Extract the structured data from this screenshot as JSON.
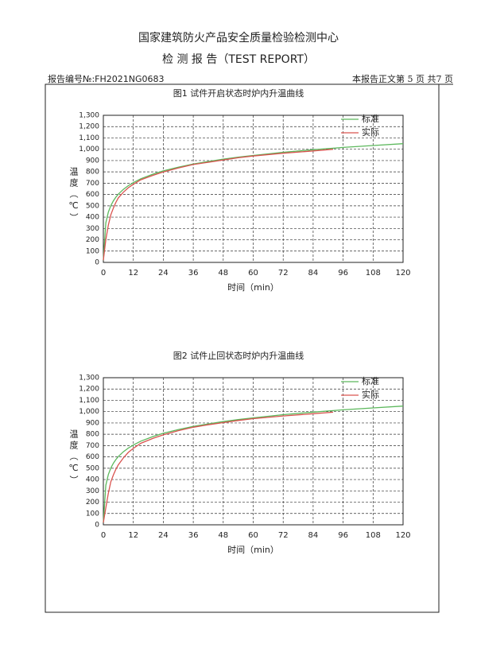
{
  "header": {
    "org": "国家建筑防火产品安全质量检验检测中心",
    "title": "检 测 报 告（TEST REPORT）",
    "report_no": "报告编号№:FH2021NG0683",
    "page_info": "本报告正文第 5 页 共7 页"
  },
  "chart_data": [
    {
      "type": "line",
      "title": "图1 试件开启状态时炉内升温曲线",
      "x_label": "时间（min）",
      "y_label": "温度（℃）",
      "x": [
        0,
        1,
        2,
        3,
        4,
        5,
        6,
        8,
        10,
        12,
        15,
        20,
        24,
        30,
        36,
        42,
        48,
        54,
        60,
        72,
        84,
        92,
        96,
        108,
        120
      ],
      "xlim": [
        0,
        120
      ],
      "ylim": [
        0,
        1300
      ],
      "grid": true,
      "legend": "upper right",
      "xticks": [
        0,
        12,
        24,
        36,
        48,
        60,
        72,
        84,
        96,
        108,
        120
      ],
      "yticks": [
        0,
        100,
        200,
        300,
        400,
        500,
        600,
        700,
        800,
        900,
        {
          "value": 1000,
          "label": "1,000"
        },
        {
          "value": 1100,
          "label": "1,100"
        },
        {
          "value": 1200,
          "label": "1,200"
        },
        {
          "value": 1300,
          "label": "1,300"
        }
      ],
      "series": [
        {
          "name": "标准",
          "color": "#5cb85c",
          "values": [
            20,
            349,
            445,
            502,
            544,
            576,
            603,
            645,
            678,
            705,
            739,
            781,
            809,
            842,
            869,
            892,
            912,
            930,
            945,
            973,
            996,
            1009,
            1016,
            1033,
            1049
          ]
        },
        {
          "name": "实际",
          "color": "#d9534f",
          "values": [
            20,
            200,
            330,
            420,
            480,
            530,
            570,
            620,
            660,
            690,
            730,
            770,
            800,
            835,
            865,
            885,
            905,
            925,
            940,
            965,
            985,
            1000,
            null,
            null,
            null
          ]
        }
      ]
    },
    {
      "type": "line",
      "title": "图2 试件止回状态时炉内升温曲线",
      "x_label": "时间（min）",
      "y_label": "温度（℃）",
      "x": [
        0,
        1,
        2,
        3,
        4,
        5,
        6,
        8,
        10,
        12,
        15,
        20,
        24,
        30,
        36,
        42,
        48,
        54,
        60,
        72,
        84,
        92,
        96,
        108,
        120
      ],
      "xlim": [
        0,
        120
      ],
      "ylim": [
        0,
        1300
      ],
      "grid": true,
      "legend": "upper right",
      "xticks": [
        0,
        12,
        24,
        36,
        48,
        60,
        72,
        84,
        96,
        108,
        120
      ],
      "yticks": [
        0,
        100,
        200,
        300,
        400,
        500,
        600,
        700,
        800,
        900,
        {
          "value": 1000,
          "label": "1,000"
        },
        {
          "value": 1100,
          "label": "1,100"
        },
        {
          "value": 1200,
          "label": "1,200"
        },
        {
          "value": 1300,
          "label": "1,300"
        }
      ],
      "series": [
        {
          "name": "标准",
          "color": "#5cb85c",
          "values": [
            20,
            349,
            445,
            502,
            544,
            576,
            603,
            645,
            678,
            705,
            739,
            781,
            809,
            842,
            869,
            892,
            912,
            930,
            945,
            973,
            996,
            1009,
            1016,
            1033,
            1049
          ]
        },
        {
          "name": "实际",
          "color": "#d9534f",
          "values": [
            20,
            150,
            280,
            380,
            440,
            490,
            530,
            590,
            640,
            675,
            720,
            765,
            795,
            832,
            862,
            884,
            903,
            922,
            938,
            962,
            982,
            995,
            null,
            null,
            null
          ]
        }
      ]
    }
  ]
}
